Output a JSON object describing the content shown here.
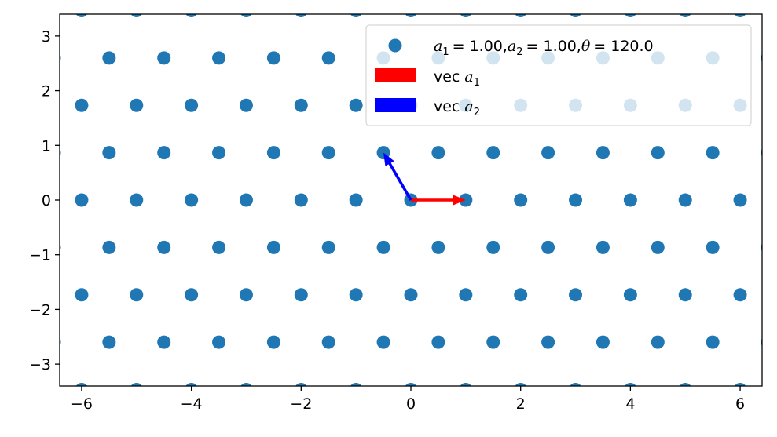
{
  "chart_data": {
    "type": "scatter",
    "title": "",
    "xlabel": "",
    "ylabel": "",
    "xlim": [
      -6.4,
      6.4
    ],
    "ylim": [
      -3.4,
      3.4
    ],
    "xticks": [
      -6,
      -4,
      -2,
      0,
      2,
      4,
      6
    ],
    "yticks": [
      -3,
      -2,
      -1,
      0,
      1,
      2,
      3
    ],
    "xtick_labels": [
      "−6",
      "−4",
      "−2",
      "0",
      "2",
      "4",
      "6"
    ],
    "ytick_labels": [
      "−3",
      "−2",
      "−1",
      "0",
      "1",
      "2",
      "3"
    ],
    "grid": false,
    "legend_position": "upper-right",
    "lattice": {
      "a1": 1.0,
      "a2": 1.0,
      "theta_deg": 120.0,
      "index_range": [
        -10,
        10
      ]
    },
    "series": [
      {
        "name": "a1 = 1.00, a2 = 1.00, θ = 120.0",
        "kind": "points",
        "color": "#1f77b4"
      }
    ],
    "vectors": [
      {
        "name": "vec a1",
        "from": [
          0,
          0
        ],
        "to": [
          1.0,
          0.0
        ],
        "color": "#ff0000"
      },
      {
        "name": "vec a2",
        "from": [
          0,
          0
        ],
        "to": [
          -0.5,
          0.866
        ],
        "color": "#0000ff"
      }
    ],
    "legend": {
      "entry1": {
        "a1_label": "a",
        "a1_sub": "1",
        "a1_val": "= 1.00,",
        "a2_label": "a",
        "a2_sub": "2",
        "a2_val": "= 1.00,",
        "theta_label": "θ",
        "theta_val": "= 120.0"
      },
      "entry2": {
        "prefix": "vec",
        "sym": "a",
        "sub": "1"
      },
      "entry3": {
        "prefix": "vec",
        "sym": "a",
        "sub": "2"
      }
    }
  }
}
